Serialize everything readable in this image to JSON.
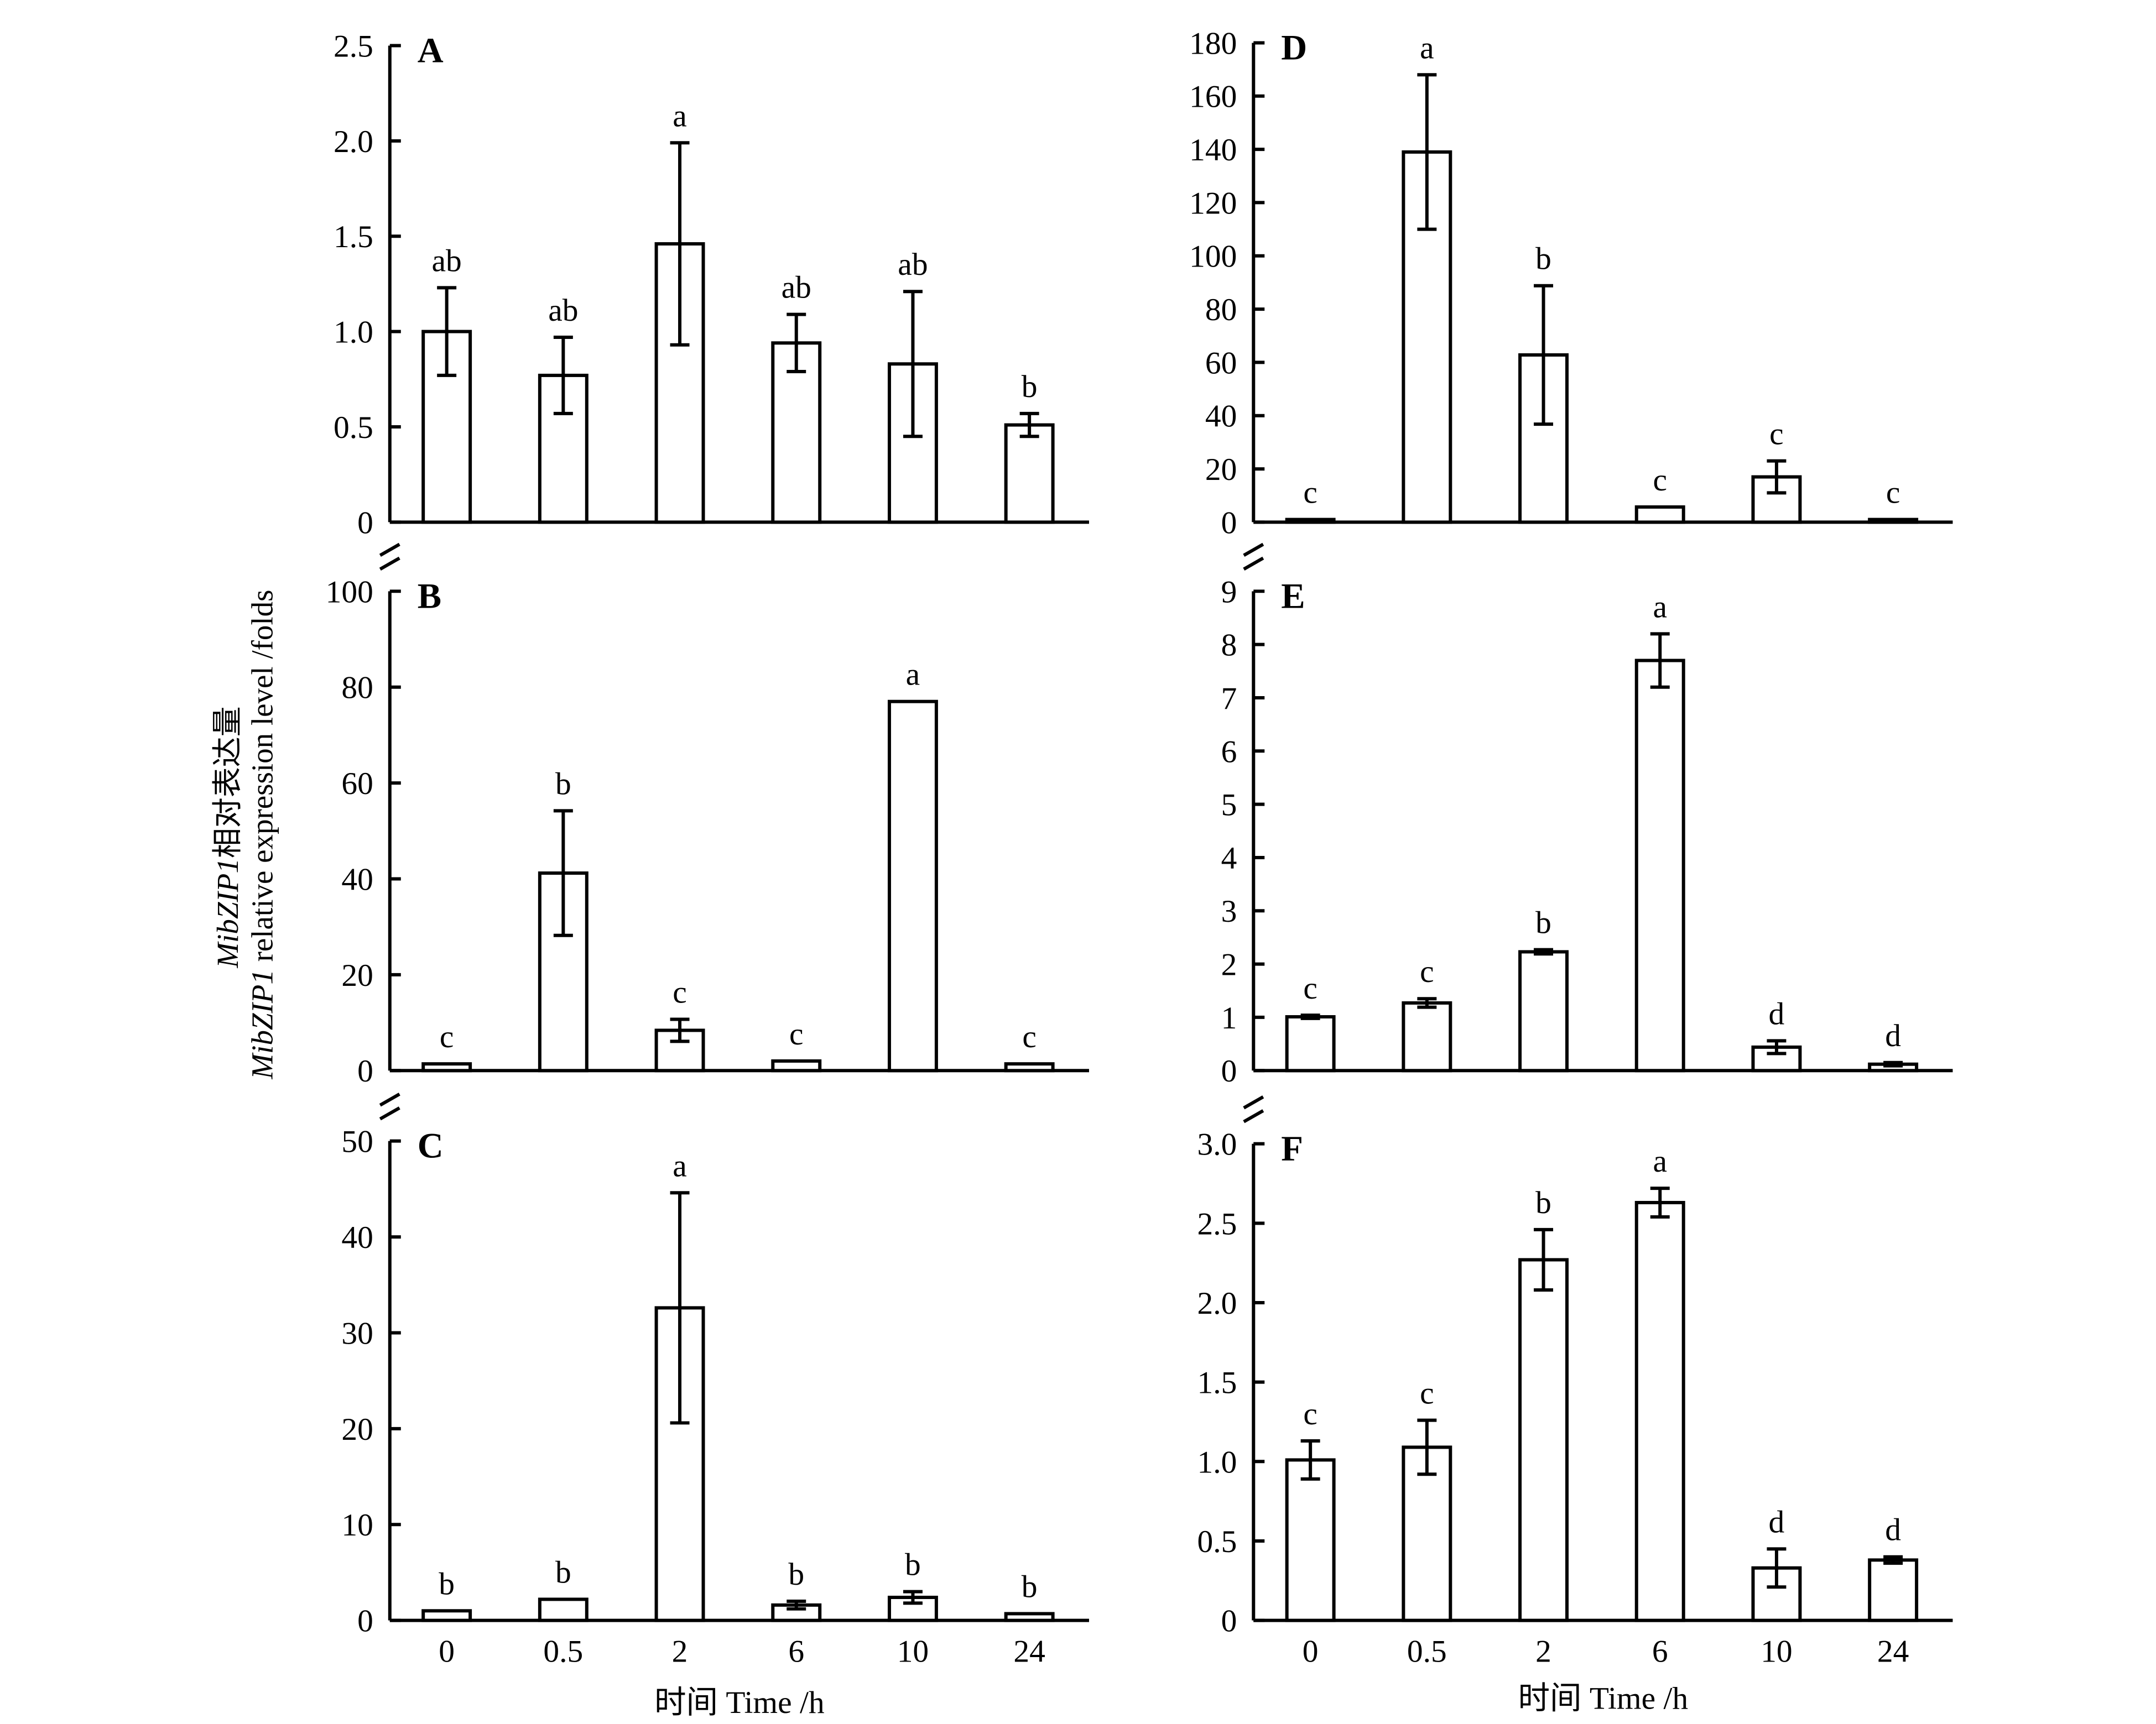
{
  "chart_data": [
    {
      "type": "bar",
      "panel": "A",
      "title": "A",
      "categories": [
        "0",
        "0.5",
        "2",
        "6",
        "10",
        "24"
      ],
      "values": [
        1.0,
        0.77,
        1.46,
        0.94,
        0.83,
        0.51
      ],
      "errors": [
        0.23,
        0.2,
        0.53,
        0.15,
        0.38,
        0.06
      ],
      "letters": [
        "ab",
        "ab",
        "a",
        "ab",
        "ab",
        "b"
      ],
      "ylim": [
        0,
        2.5
      ],
      "yticks": [
        0,
        0.5,
        1.0,
        1.5,
        2.0,
        2.5
      ],
      "ytick_labels": [
        "0",
        "0.5",
        "1.0",
        "1.5",
        "2.0",
        "2.5"
      ]
    },
    {
      "type": "bar",
      "panel": "B",
      "title": "B",
      "categories": [
        "0",
        "0.5",
        "2",
        "6",
        "10",
        "24"
      ],
      "values": [
        1.4,
        41.2,
        8.4,
        2.0,
        77.0,
        1.4
      ],
      "errors": [
        0,
        13,
        2.3,
        0,
        0,
        0
      ],
      "letters": [
        "c",
        "b",
        "c",
        "c",
        "a",
        "c"
      ],
      "ylim": [
        0,
        100
      ],
      "yticks": [
        0,
        20,
        40,
        60,
        80,
        100
      ],
      "ytick_labels": [
        "0",
        "20",
        "40",
        "60",
        "80",
        "100"
      ]
    },
    {
      "type": "bar",
      "panel": "C",
      "title": "C",
      "categories": [
        "0",
        "0.5",
        "2",
        "6",
        "10",
        "24"
      ],
      "values": [
        1.0,
        2.2,
        32.6,
        1.6,
        2.4,
        0.7
      ],
      "errors": [
        0,
        0,
        12,
        0.4,
        0.6,
        0
      ],
      "letters": [
        "b",
        "b",
        "a",
        "b",
        "b",
        "b"
      ],
      "ylim": [
        0,
        50
      ],
      "yticks": [
        0,
        10,
        20,
        30,
        40,
        50
      ],
      "ytick_labels": [
        "0",
        "10",
        "20",
        "30",
        "40",
        "50"
      ],
      "xtick_labels": [
        "0",
        "0.5",
        "2",
        "6",
        "10",
        "24"
      ]
    },
    {
      "type": "bar",
      "panel": "D",
      "title": "D",
      "categories": [
        "0",
        "0.5",
        "2",
        "6",
        "10",
        "24"
      ],
      "values": [
        1.0,
        139,
        62.8,
        5.7,
        17,
        1.0
      ],
      "errors": [
        0,
        29,
        26,
        0,
        6,
        0
      ],
      "letters": [
        "c",
        "a",
        "b",
        "c",
        "c",
        "c"
      ],
      "ylim": [
        0,
        180
      ],
      "yticks": [
        0,
        20,
        40,
        60,
        80,
        100,
        120,
        140,
        160,
        180
      ],
      "ytick_labels": [
        "0",
        "20",
        "40",
        "60",
        "80",
        "100",
        "120",
        "140",
        "160",
        "180"
      ]
    },
    {
      "type": "bar",
      "panel": "E",
      "title": "E",
      "categories": [
        "0",
        "0.5",
        "2",
        "6",
        "10",
        "24"
      ],
      "values": [
        1.01,
        1.27,
        2.23,
        7.7,
        0.44,
        0.12
      ],
      "errors": [
        0.03,
        0.08,
        0.04,
        0.5,
        0.12,
        0.03
      ],
      "letters": [
        "c",
        "c",
        "b",
        "a",
        "d",
        "d"
      ],
      "ylim": [
        0,
        9
      ],
      "yticks": [
        0,
        1,
        2,
        3,
        4,
        5,
        6,
        7,
        8,
        9
      ],
      "ytick_labels": [
        "0",
        "1",
        "2",
        "3",
        "4",
        "5",
        "6",
        "7",
        "8",
        "9"
      ]
    },
    {
      "type": "bar",
      "panel": "F",
      "title": "F",
      "categories": [
        "0",
        "0.5",
        "2",
        "6",
        "10",
        "24"
      ],
      "values": [
        1.01,
        1.09,
        2.27,
        2.63,
        0.33,
        0.38
      ],
      "errors": [
        0.12,
        0.17,
        0.19,
        0.09,
        0.12,
        0.02
      ],
      "letters": [
        "c",
        "c",
        "b",
        "a",
        "d",
        "d"
      ],
      "ylim": [
        0,
        3.0
      ],
      "yticks": [
        0,
        0.5,
        1.0,
        1.5,
        2.0,
        2.5,
        3.0
      ],
      "ytick_labels": [
        "0",
        "0.5",
        "1.0",
        "1.5",
        "2.0",
        "2.5",
        "3.0"
      ],
      "xtick_labels": [
        "0",
        "0.5",
        "2",
        "6",
        "10",
        "24"
      ]
    }
  ],
  "labels": {
    "ylabel_cn_gene": "MibZIP1",
    "ylabel_cn_rest": "相对表达量",
    "ylabel_en_gene": "MibZIP1",
    "ylabel_en_rest": " relative expression level /folds",
    "xlabel_left": "时间 Time /h",
    "xlabel_right": "时间 Time /h"
  },
  "colors": {
    "bar_fill": "#ffffff",
    "stroke": "#000000"
  }
}
